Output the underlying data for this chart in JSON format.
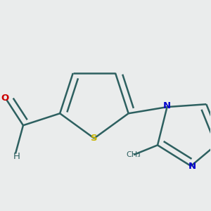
{
  "background_color": "#eaecec",
  "atom_colors": {
    "S": "#c8b400",
    "N": "#0000cc",
    "O": "#cc0000",
    "C": "#2d6060",
    "H": "#2d6060"
  },
  "bond_color": "#2d6060",
  "bond_width": 1.8,
  "figsize": [
    3.0,
    3.0
  ],
  "dpi": 100
}
